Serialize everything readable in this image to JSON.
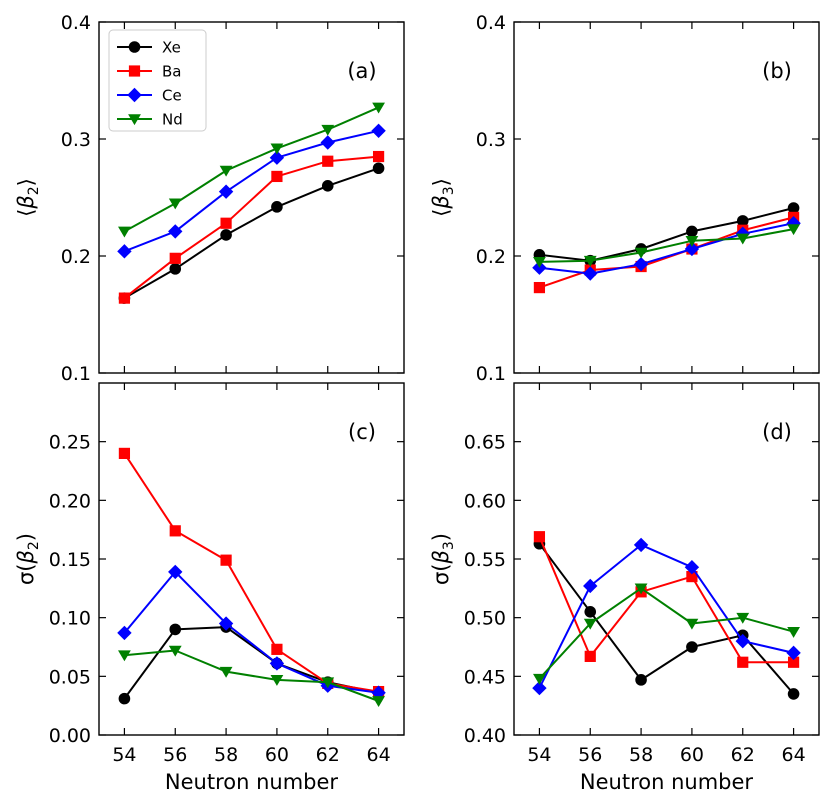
{
  "chart_data": [
    {
      "type": "line",
      "panel": "(a)",
      "xlabel": "",
      "ylabel": "⟨β₂⟩",
      "ylabel_symbol": "β",
      "ylabel_sub": "2",
      "ylabel_style": "angle",
      "x": [
        54,
        56,
        58,
        60,
        62,
        64
      ],
      "xticks": [
        54,
        56,
        58,
        60,
        62,
        64
      ],
      "xticklabels": [
        "",
        "",
        "",
        "",
        "",
        ""
      ],
      "xlim": [
        53,
        65
      ],
      "ylim": [
        0.1,
        0.4
      ],
      "yticks": [
        0.1,
        0.2,
        0.3,
        0.4
      ],
      "yticklabels": [
        "0.1",
        "0.2",
        "0.3",
        "0.4"
      ],
      "legend": true,
      "legend_position": "top-left",
      "series": [
        {
          "name": "Xe",
          "color": "#000000",
          "marker": "circle",
          "values": [
            0.164,
            0.189,
            0.218,
            0.242,
            0.26,
            0.275
          ]
        },
        {
          "name": "Ba",
          "color": "#ff0000",
          "marker": "square",
          "values": [
            0.164,
            0.198,
            0.228,
            0.268,
            0.281,
            0.285
          ]
        },
        {
          "name": "Ce",
          "color": "#0000ff",
          "marker": "diamond",
          "values": [
            0.204,
            0.221,
            0.255,
            0.284,
            0.297,
            0.307
          ]
        },
        {
          "name": "Nd",
          "color": "#008000",
          "marker": "triangle-down",
          "values": [
            0.221,
            0.245,
            0.273,
            0.292,
            0.308,
            0.327
          ]
        }
      ]
    },
    {
      "type": "line",
      "panel": "(b)",
      "xlabel": "",
      "ylabel": "⟨β₃⟩",
      "ylabel_symbol": "β",
      "ylabel_sub": "3",
      "ylabel_style": "angle",
      "x": [
        54,
        56,
        58,
        60,
        62,
        64
      ],
      "xticks": [
        54,
        56,
        58,
        60,
        62,
        64
      ],
      "xticklabels": [
        "",
        "",
        "",
        "",
        "",
        ""
      ],
      "xlim": [
        53,
        65
      ],
      "ylim": [
        0.1,
        0.4
      ],
      "yticks": [
        0.1,
        0.2,
        0.3,
        0.4
      ],
      "yticklabels": [
        "0.1",
        "0.2",
        "0.3",
        "0.4"
      ],
      "legend": false,
      "series": [
        {
          "name": "Xe",
          "color": "#000000",
          "marker": "circle",
          "values": [
            0.201,
            0.196,
            0.206,
            0.221,
            0.23,
            0.241
          ]
        },
        {
          "name": "Ba",
          "color": "#ff0000",
          "marker": "square",
          "values": [
            0.173,
            0.188,
            0.191,
            0.206,
            0.222,
            0.233
          ]
        },
        {
          "name": "Ce",
          "color": "#0000ff",
          "marker": "diamond",
          "values": [
            0.19,
            0.185,
            0.193,
            0.206,
            0.219,
            0.228
          ]
        },
        {
          "name": "Nd",
          "color": "#008000",
          "marker": "triangle-down",
          "values": [
            0.195,
            0.196,
            0.203,
            0.213,
            0.215,
            0.223
          ]
        }
      ]
    },
    {
      "type": "line",
      "panel": "(c)",
      "xlabel": "Neutron number",
      "ylabel": "σ(β₂)",
      "ylabel_symbol": "β",
      "ylabel_sub": "2",
      "ylabel_style": "sigma",
      "x": [
        54,
        56,
        58,
        60,
        62,
        64
      ],
      "xticks": [
        54,
        56,
        58,
        60,
        62,
        64
      ],
      "xticklabels": [
        "54",
        "56",
        "58",
        "60",
        "62",
        "64"
      ],
      "xlim": [
        53,
        65
      ],
      "ylim": [
        0.0,
        0.3
      ],
      "yticks": [
        0.0,
        0.05,
        0.1,
        0.15,
        0.2,
        0.25
      ],
      "yticklabels": [
        "0.00",
        "0.05",
        "0.10",
        "0.15",
        "0.20",
        "0.25"
      ],
      "legend": false,
      "series": [
        {
          "name": "Xe",
          "color": "#000000",
          "marker": "circle",
          "values": [
            0.031,
            0.09,
            0.092,
            0.061,
            0.045,
            0.036
          ]
        },
        {
          "name": "Ba",
          "color": "#ff0000",
          "marker": "square",
          "values": [
            0.24,
            0.174,
            0.149,
            0.073,
            0.044,
            0.037
          ]
        },
        {
          "name": "Ce",
          "color": "#0000ff",
          "marker": "diamond",
          "values": [
            0.087,
            0.139,
            0.095,
            0.061,
            0.042,
            0.036
          ]
        },
        {
          "name": "Nd",
          "color": "#008000",
          "marker": "triangle-down",
          "values": [
            0.068,
            0.072,
            0.054,
            0.047,
            0.045,
            0.029
          ]
        }
      ]
    },
    {
      "type": "line",
      "panel": "(d)",
      "xlabel": "Neutron number",
      "ylabel": "σ(β₃)",
      "ylabel_symbol": "β",
      "ylabel_sub": "3",
      "ylabel_style": "sigma",
      "x": [
        54,
        56,
        58,
        60,
        62,
        64
      ],
      "xticks": [
        54,
        56,
        58,
        60,
        62,
        64
      ],
      "xticklabels": [
        "54",
        "56",
        "58",
        "60",
        "62",
        "64"
      ],
      "xlim": [
        53,
        65
      ],
      "ylim": [
        0.4,
        0.7
      ],
      "yticks": [
        0.4,
        0.45,
        0.5,
        0.55,
        0.6,
        0.65
      ],
      "yticklabels": [
        "0.40",
        "0.45",
        "0.50",
        "0.55",
        "0.60",
        "0.65"
      ],
      "legend": false,
      "series": [
        {
          "name": "Xe",
          "color": "#000000",
          "marker": "circle",
          "values": [
            0.563,
            0.505,
            0.447,
            0.475,
            0.485,
            0.435
          ]
        },
        {
          "name": "Ba",
          "color": "#ff0000",
          "marker": "square",
          "values": [
            0.569,
            0.467,
            0.522,
            0.535,
            0.462,
            0.462
          ]
        },
        {
          "name": "Ce",
          "color": "#0000ff",
          "marker": "diamond",
          "values": [
            0.44,
            0.527,
            0.562,
            0.543,
            0.48,
            0.47
          ]
        },
        {
          "name": "Nd",
          "color": "#008000",
          "marker": "triangle-down",
          "values": [
            0.448,
            0.495,
            0.525,
            0.495,
            0.5,
            0.488
          ]
        }
      ]
    }
  ]
}
